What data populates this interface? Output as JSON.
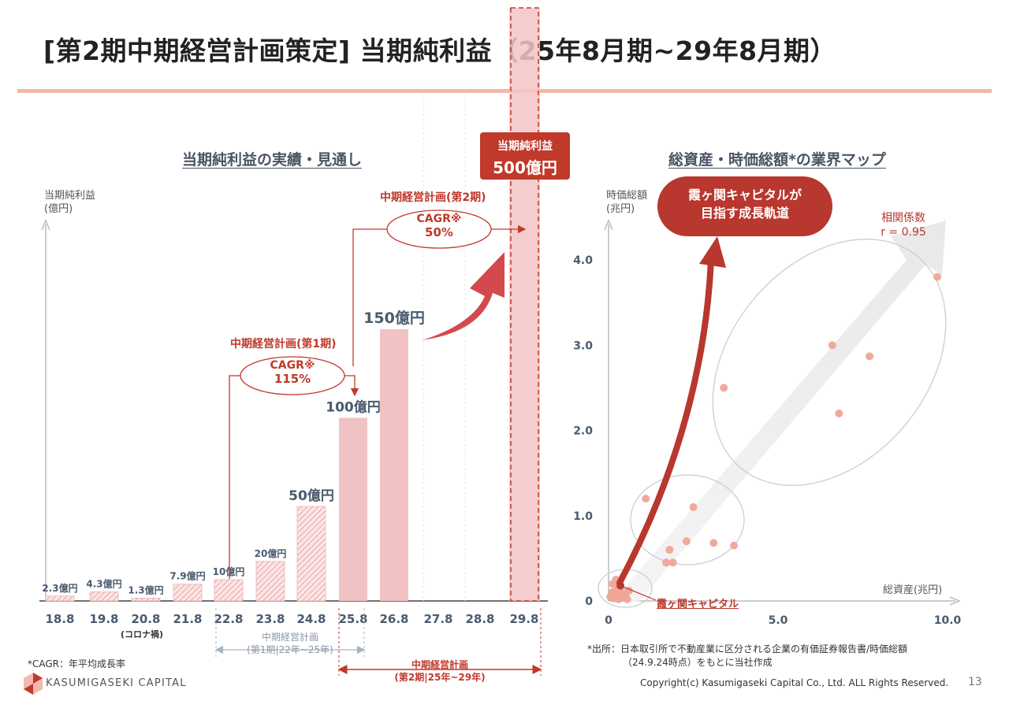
{
  "page": {
    "title": "[第2期中期経営計画策定] 当期純利益（25年8月期~29年8月期）",
    "page_number": "13",
    "copyright": "Copyright(c) Kasumigaseki Capital Co., Ltd. ALL Rights Reserved.",
    "logo_text": "KASUMIGASEKI CAPITAL",
    "cagr_note": "*CAGR：年平均成長率",
    "source_note_line1": "*出所：日本取引所で不動産業に区分される企業の有価証券報告書/時価総額",
    "source_note_line2": "（24.9.24時点）をもとに当社作成"
  },
  "colors": {
    "accent": "#c0392b",
    "bar_main": "#f0c2c4",
    "bar_hatch": "#e9a3a5",
    "arrow_red": "#d4494d",
    "dot": "#eea597",
    "title_rule": "#f2b8aa"
  },
  "chart_data": [
    {
      "type": "bar",
      "title": "当期純利益の実績・見通し",
      "ylabel": "当期純利益\n(億円)",
      "categories": [
        "18.8",
        "19.8",
        "20.8",
        "21.8",
        "22.8",
        "23.8",
        "24.8",
        "25.8",
        "26.8",
        "27.8",
        "28.8",
        "29.8"
      ],
      "values": [
        2.3,
        4.3,
        1.3,
        7.9,
        10,
        20,
        50,
        100,
        150,
        null,
        null,
        500
      ],
      "value_labels": [
        "2.3億円",
        "4.3億円",
        "1.3億円",
        "7.9億円",
        "10億円",
        "20億円",
        "50億円",
        "100億円",
        "150億円",
        "",
        "",
        ""
      ],
      "bar_style": [
        "hatch",
        "hatch",
        "hatch",
        "hatch",
        "hatch",
        "hatch",
        "hatch",
        "solid",
        "solid",
        "none",
        "none",
        "highlight"
      ],
      "category_notes": {
        "20.8": "(コロナ禍)"
      },
      "highlight": {
        "category": "29.8",
        "label_line1": "当期純利益",
        "label_line2": "500億円"
      },
      "annotations": {
        "plan1": {
          "title": "中期経営計画(第1期)",
          "cagr_label": "CAGR※",
          "cagr_value": "115%"
        },
        "plan2": {
          "title": "中期経営計画(第2期)",
          "cagr_label": "CAGR※",
          "cagr_value": "50%"
        },
        "period1_line1": "中期経営計画",
        "period1_line2": "(第1期|22年~25年)",
        "period2_line1": "中期経営計画",
        "period2_line2": "(第2期|25年~29年)"
      }
    },
    {
      "type": "scatter",
      "title": "総資産・時価総額*の業界マップ",
      "xlabel": "総資産(兆円)",
      "ylabel": "時価総額\n(兆円)",
      "xlim": [
        0,
        10.0
      ],
      "ylim": [
        0,
        4.0
      ],
      "xticks": [
        "0",
        "5.0",
        "10.0"
      ],
      "yticks": [
        "0",
        "1.0",
        "2.0",
        "3.0",
        "4.0"
      ],
      "points": [
        {
          "x": 9.7,
          "y": 3.8
        },
        {
          "x": 6.6,
          "y": 3.0
        },
        {
          "x": 7.7,
          "y": 2.87
        },
        {
          "x": 6.8,
          "y": 2.2
        },
        {
          "x": 3.4,
          "y": 2.5
        },
        {
          "x": 1.1,
          "y": 1.2
        },
        {
          "x": 2.5,
          "y": 1.1
        },
        {
          "x": 2.3,
          "y": 0.7
        },
        {
          "x": 3.1,
          "y": 0.68
        },
        {
          "x": 3.7,
          "y": 0.65
        },
        {
          "x": 1.8,
          "y": 0.6
        },
        {
          "x": 1.7,
          "y": 0.45
        },
        {
          "x": 1.9,
          "y": 0.45
        },
        {
          "x": 0.05,
          "y": 0.05
        },
        {
          "x": 0.1,
          "y": 0.1
        },
        {
          "x": 0.15,
          "y": 0.03
        },
        {
          "x": 0.2,
          "y": 0.12
        },
        {
          "x": 0.25,
          "y": 0.06
        },
        {
          "x": 0.3,
          "y": 0.15
        },
        {
          "x": 0.35,
          "y": 0.08
        },
        {
          "x": 0.4,
          "y": 0.04
        },
        {
          "x": 0.45,
          "y": 0.1
        },
        {
          "x": 0.5,
          "y": 0.06
        },
        {
          "x": 0.55,
          "y": 0.02
        },
        {
          "x": 0.12,
          "y": 0.2
        },
        {
          "x": 0.22,
          "y": 0.25
        },
        {
          "x": 0.3,
          "y": 0.02
        },
        {
          "x": 0.6,
          "y": 0.12
        }
      ],
      "company": {
        "name": "霞ヶ関キャピタル",
        "x": 0.35,
        "y": 0.18
      },
      "correlation_label": "相関係数",
      "correlation_value": "r = 0.95",
      "callout_line1": "霞ヶ関キャピタルが",
      "callout_line2": "目指す成長軌道"
    }
  ]
}
